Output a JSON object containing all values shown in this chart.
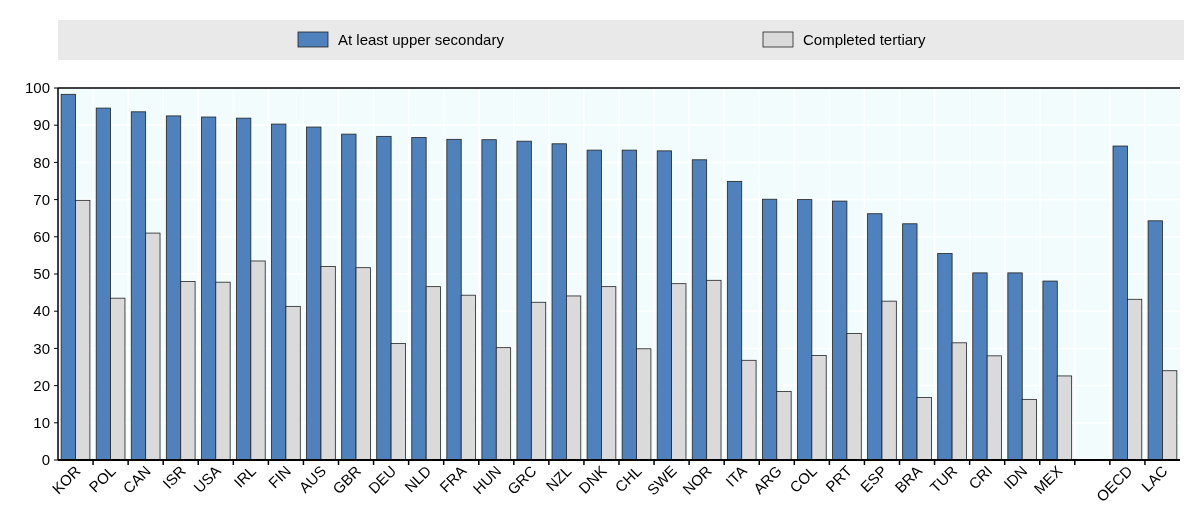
{
  "chart_data": {
    "type": "bar",
    "categories": [
      "KOR",
      "POL",
      "CAN",
      "ISR",
      "USA",
      "IRL",
      "FIN",
      "AUS",
      "GBR",
      "DEU",
      "NLD",
      "FRA",
      "HUN",
      "GRC",
      "NZL",
      "DNK",
      "CHL",
      "SWE",
      "NOR",
      "ITA",
      "ARG",
      "COL",
      "PRT",
      "ESP",
      "BRA",
      "TUR",
      "CRI",
      "IDN",
      "MEX",
      null,
      "OECD",
      "LAC"
    ],
    "series": [
      {
        "name": "At least upper secondary",
        "color": "#4f81bd",
        "values": [
          98.3,
          94.6,
          93.6,
          92.5,
          92.2,
          91.9,
          90.3,
          89.5,
          87.6,
          87,
          86.7,
          86.2,
          86.1,
          85.7,
          85,
          83.3,
          83.3,
          83.1,
          80.7,
          74.9,
          70.1,
          70,
          69.6,
          66.2,
          63.5,
          55.5,
          50.3,
          50.3,
          48.1,
          null,
          84.4,
          64.3
        ]
      },
      {
        "name": "Completed tertiary",
        "color": "#dadada",
        "values": [
          69.8,
          43.5,
          61,
          48,
          47.8,
          53.5,
          41.3,
          52,
          51.7,
          31.3,
          46.6,
          44.3,
          30.2,
          42.4,
          44.1,
          46.6,
          29.9,
          47.4,
          48.3,
          26.8,
          18.4,
          28.1,
          34,
          42.7,
          16.8,
          31.5,
          28,
          16.3,
          22.6,
          null,
          43.2,
          24
        ]
      }
    ],
    "ylim": [
      0,
      100
    ],
    "yticks": [
      0,
      10,
      20,
      30,
      40,
      50,
      60,
      70,
      80,
      90,
      100
    ],
    "grid": true,
    "legend": "top"
  }
}
